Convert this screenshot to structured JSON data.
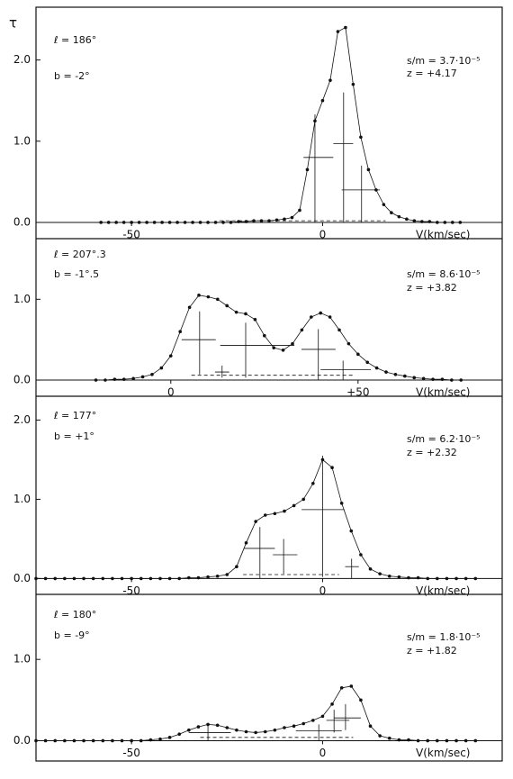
{
  "chart_data": [
    {
      "type": "dotted-profile",
      "ylabel": "τ",
      "xlabel": "V(km/sec)",
      "annotations": [
        "ℓ = 186°",
        "b = -2°",
        "s/m = 3.7·10⁻⁵",
        "z = +4.17"
      ],
      "xlim": [
        -75,
        47
      ],
      "ylim": [
        -0.2,
        2.65
      ],
      "xticks": [
        -50,
        0
      ],
      "yticks": [
        {
          "value": 0,
          "label": "0.0"
        },
        {
          "value": 1,
          "label": "1.0"
        },
        {
          "value": 2,
          "label": "2.0"
        }
      ],
      "color": "#111111",
      "x": [
        -58,
        -56,
        -54,
        -52,
        -50,
        -48,
        -46,
        -44,
        -42,
        -40,
        -38,
        -36,
        -34,
        -32,
        -30,
        -28,
        -26,
        -24,
        -22,
        -20,
        -18,
        -16,
        -14,
        -12,
        -10,
        -8,
        -6,
        -4,
        -2,
        0,
        2,
        4,
        6,
        8,
        10,
        12,
        14,
        16,
        18,
        20,
        22,
        24,
        26,
        28,
        30,
        32,
        34,
        36
      ],
      "values": [
        0,
        0,
        0,
        0,
        0,
        0,
        0,
        0,
        0,
        0,
        0,
        0,
        0,
        0,
        0,
        0,
        0,
        0,
        0.01,
        0.01,
        0.02,
        0.02,
        0.02,
        0.03,
        0.04,
        0.06,
        0.15,
        0.65,
        1.25,
        1.5,
        1.75,
        2.35,
        2.4,
        1.7,
        1.05,
        0.65,
        0.4,
        0.22,
        0.12,
        0.07,
        0.04,
        0.02,
        0.01,
        0.01,
        0,
        0,
        0,
        0
      ],
      "errorbars": [
        {
          "x": -2,
          "y": 0.8,
          "x_low": -5,
          "x_high": 2.8,
          "y_low": 0,
          "y_high": 1.33
        },
        {
          "x": 5.5,
          "y": 0.97,
          "x_low": 2.8,
          "x_high": 8,
          "y_low": 0,
          "y_high": 1.6
        },
        {
          "x": 10.2,
          "y": 0.4,
          "x_low": 5,
          "x_high": 15,
          "y_low": 0,
          "y_high": 0.7
        }
      ],
      "dashed": {
        "y": 0.02,
        "x_low": -27,
        "x_high": 16.5
      }
    },
    {
      "type": "dotted-profile",
      "xlabel": "V(km/sec)",
      "annotations": [
        "ℓ = 207°.3",
        "b = -1°.5",
        "s/m = 8.6·10⁻⁵",
        "z = +3.82"
      ],
      "xlim": [
        -36,
        88.5
      ],
      "ylim": [
        -0.2,
        1.75
      ],
      "xticks": [
        0,
        {
          "value": 50,
          "label": "+50"
        }
      ],
      "yticks": [
        {
          "value": 0,
          "label": "0.0"
        },
        {
          "value": 1,
          "label": "1.0"
        }
      ],
      "color": "#111111",
      "x": [
        -20,
        -17.5,
        -15,
        -12.5,
        -10,
        -7.5,
        -5,
        -2.5,
        0,
        2.5,
        5,
        7.5,
        10,
        12.5,
        15,
        17.5,
        20,
        22.5,
        25,
        27.5,
        30,
        32.5,
        35,
        37.5,
        40,
        42.5,
        45,
        47.5,
        50,
        52.5,
        55,
        57.5,
        60,
        62.5,
        65,
        67.5,
        70,
        72.5,
        75,
        77.5
      ],
      "values": [
        0,
        0,
        0.01,
        0.01,
        0.02,
        0.04,
        0.07,
        0.15,
        0.3,
        0.6,
        0.9,
        1.05,
        1.03,
        1.0,
        0.92,
        0.84,
        0.82,
        0.75,
        0.55,
        0.4,
        0.37,
        0.45,
        0.62,
        0.78,
        0.83,
        0.78,
        0.62,
        0.45,
        0.32,
        0.22,
        0.15,
        0.1,
        0.07,
        0.05,
        0.03,
        0.02,
        0.01,
        0.01,
        0,
        0
      ],
      "errorbars": [
        {
          "x": 7.7,
          "y": 0.5,
          "x_low": 2.9,
          "x_high": 12,
          "y_low": 0.07,
          "y_high": 0.85
        },
        {
          "x": 13.7,
          "y": 0.1,
          "x_low": 11.8,
          "x_high": 15.6,
          "y_low": 0.03,
          "y_high": 0.18
        },
        {
          "x": 20,
          "y": 0.43,
          "x_low": 13.2,
          "x_high": 33,
          "y_low": 0.03,
          "y_high": 0.71
        },
        {
          "x": 39.4,
          "y": 0.38,
          "x_low": 34.9,
          "x_high": 44,
          "y_low": 0,
          "y_high": 0.63
        },
        {
          "x": 46,
          "y": 0.13,
          "x_low": 40,
          "x_high": 53.4,
          "y_low": 0,
          "y_high": 0.24
        }
      ],
      "dashed": {
        "y": 0.06,
        "x_low": 5.5,
        "x_high": 48.6
      }
    },
    {
      "type": "dotted-profile",
      "xlabel": "V(km/sec)",
      "annotations": [
        "ℓ = 177°",
        "b = +1°",
        "s/m = 6.2·10⁻⁵",
        "z = +2.32"
      ],
      "xlim": [
        -75,
        47
      ],
      "ylim": [
        -0.2,
        2.3
      ],
      "xticks": [
        -50,
        0
      ],
      "yticks": [
        {
          "value": 0,
          "label": "0.0"
        },
        {
          "value": 1,
          "label": "1.0"
        },
        {
          "value": 2,
          "label": "2.0"
        }
      ],
      "color": "#111111",
      "x": [
        -75,
        -72.5,
        -70,
        -67.5,
        -65,
        -62.5,
        -60,
        -57.5,
        -55,
        -52.5,
        -50,
        -47.5,
        -45,
        -42.5,
        -40,
        -37.5,
        -35,
        -32.5,
        -30,
        -27.5,
        -25,
        -22.5,
        -20,
        -17.5,
        -15,
        -12.5,
        -10,
        -7.5,
        -5,
        -2.5,
        0,
        2.5,
        5,
        7.5,
        10,
        12.5,
        15,
        17.5,
        20,
        22.5,
        25,
        27.5,
        30,
        32.5,
        35,
        37.5,
        40
      ],
      "values": [
        0,
        0,
        0,
        0,
        0,
        0,
        0,
        0,
        0,
        0,
        0,
        0,
        0,
        0,
        0,
        0,
        0.01,
        0.01,
        0.02,
        0.03,
        0.05,
        0.15,
        0.45,
        0.72,
        0.8,
        0.82,
        0.85,
        0.92,
        1.0,
        1.2,
        1.5,
        1.4,
        0.95,
        0.6,
        0.3,
        0.12,
        0.06,
        0.03,
        0.02,
        0.01,
        0.01,
        0,
        0,
        0,
        0,
        0,
        0
      ],
      "errorbars": [
        {
          "x": -16.4,
          "y": 0.38,
          "x_low": -20.6,
          "x_high": -12.5,
          "y_low": 0,
          "y_high": 0.65
        },
        {
          "x": -10.2,
          "y": 0.3,
          "x_low": -13,
          "x_high": -6.6,
          "y_low": 0.06,
          "y_high": 0.5
        },
        {
          "x": 0,
          "y": 0.87,
          "x_low": -5.5,
          "x_high": 5.7,
          "y_low": 0.02,
          "y_high": 1.55
        },
        {
          "x": 7.6,
          "y": 0.15,
          "x_low": 5.9,
          "x_high": 9.5,
          "y_low": 0,
          "y_high": 0.25
        }
      ],
      "dashed": {
        "y": 0.05,
        "x_low": -20.8,
        "x_high": 4.3
      }
    },
    {
      "type": "dotted-profile",
      "xlabel": "V(km/sec)",
      "annotations": [
        "ℓ = 180°",
        "b = -9°",
        "s/m = 1.8·10⁻⁵",
        "z = +1.82"
      ],
      "xlim": [
        -75,
        47
      ],
      "ylim": [
        -0.25,
        1.8
      ],
      "xticks": [
        -50,
        0
      ],
      "yticks": [
        {
          "value": 0,
          "label": "0.0"
        },
        {
          "value": 1,
          "label": "1.0"
        }
      ],
      "color": "#111111",
      "x": [
        -75,
        -72.5,
        -70,
        -67.5,
        -65,
        -62.5,
        -60,
        -57.5,
        -55,
        -52.5,
        -50,
        -47.5,
        -45,
        -42.5,
        -40,
        -37.5,
        -35,
        -32.5,
        -30,
        -27.5,
        -25,
        -22.5,
        -20,
        -17.5,
        -15,
        -12.5,
        -10,
        -7.5,
        -5,
        -2.5,
        0,
        2.5,
        5,
        7.5,
        10,
        12.5,
        15,
        17.5,
        20,
        22.5,
        25,
        27.5,
        30,
        32.5,
        35,
        37.5,
        40
      ],
      "values": [
        0,
        0,
        0,
        0,
        0,
        0,
        0,
        0,
        0,
        0,
        0,
        0,
        0.01,
        0.02,
        0.04,
        0.08,
        0.13,
        0.17,
        0.2,
        0.19,
        0.16,
        0.13,
        0.11,
        0.1,
        0.11,
        0.13,
        0.16,
        0.18,
        0.21,
        0.25,
        0.3,
        0.45,
        0.65,
        0.67,
        0.5,
        0.18,
        0.06,
        0.03,
        0.01,
        0.01,
        0,
        0,
        0,
        0,
        0,
        0,
        0
      ],
      "errorbars": [
        {
          "x": -30,
          "y": 0.1,
          "x_low": -35,
          "x_high": -24,
          "y_low": 0,
          "y_high": 0.2
        },
        {
          "x": -1,
          "y": 0.12,
          "x_low": -7,
          "x_high": 5,
          "y_low": 0,
          "y_high": 0.2
        },
        {
          "x": 3,
          "y": 0.25,
          "x_low": 1,
          "x_high": 7,
          "y_low": 0.1,
          "y_high": 0.38
        },
        {
          "x": 6,
          "y": 0.28,
          "x_low": 3,
          "x_high": 10,
          "y_low": 0.13,
          "y_high": 0.45
        }
      ],
      "dashed": {
        "y": 0.04,
        "x_low": -32,
        "x_high": 8
      }
    }
  ]
}
